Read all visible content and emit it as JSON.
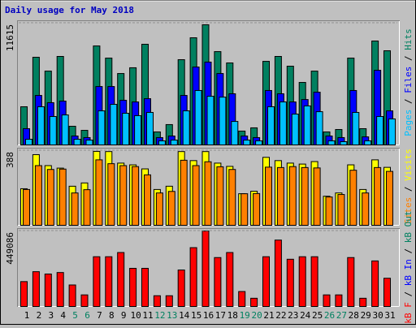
{
  "chart_data": [
    {
      "type": "bar",
      "title": "Daily usage for May 2018",
      "ylim": [
        0,
        11615
      ],
      "yticks": [
        11615
      ],
      "legend_separator": " / ",
      "legend": [
        {
          "name": "Pages",
          "color": "#00c0ff"
        },
        {
          "name": "Files",
          "color": "#0000ff"
        },
        {
          "name": "Hits",
          "color": "#008060"
        }
      ],
      "series": [
        {
          "color": "#008060",
          "values": [
            3640,
            8360,
            7040,
            8440,
            1780,
            1390,
            9440,
            8280,
            6810,
            7360,
            9600,
            1240,
            1940,
            8130,
            10220,
            11460,
            8900,
            7820,
            1320,
            1630,
            7970,
            8440,
            7510,
            5960,
            7040,
            1240,
            1470,
            8280,
            1550,
            9910,
            8980
          ]
        },
        {
          "color": "#0000ff",
          "values": [
            1550,
            4720,
            4030,
            4180,
            850,
            700,
            5570,
            5570,
            4260,
            4100,
            4410,
            700,
            850,
            4720,
            7430,
            7900,
            6810,
            4880,
            850,
            700,
            5190,
            4880,
            4100,
            4330,
            5030,
            850,
            700,
            5190,
            770,
            7120,
            3250
          ]
        },
        {
          "color": "#00c0ff",
          "values": [
            540,
            3640,
            2710,
            2860,
            540,
            460,
            3250,
            3870,
            3020,
            2790,
            3100,
            390,
            460,
            3250,
            5190,
            4640,
            4560,
            2240,
            460,
            390,
            3640,
            4100,
            2940,
            3720,
            3170,
            390,
            310,
            3100,
            390,
            2710,
            2480
          ]
        }
      ]
    },
    {
      "type": "bar",
      "ylim": [
        0,
        388
      ],
      "yticks": [
        388
      ],
      "legend_separator": " / ",
      "legend": [
        {
          "name": "Sites",
          "color": "#ff8000"
        },
        {
          "name": "Visits",
          "color": "#ffff00"
        }
      ],
      "series": [
        {
          "color": "#ffff00",
          "values": [
            190,
            367,
            310,
            297,
            203,
            220,
            384,
            383,
            323,
            314,
            293,
            186,
            203,
            383,
            336,
            383,
            323,
            306,
            164,
            177,
            353,
            336,
            323,
            318,
            331,
            151,
            168,
            314,
            186,
            340,
            301
          ]
        },
        {
          "color": "#ff8000",
          "values": [
            186,
            310,
            290,
            292,
            168,
            185,
            340,
            320,
            310,
            305,
            262,
            168,
            176,
            338,
            310,
            330,
            304,
            290,
            164,
            165,
            302,
            300,
            305,
            300,
            298,
            147,
            160,
            286,
            168,
            300,
            280
          ]
        }
      ]
    },
    {
      "type": "bar",
      "ylim": [
        0,
        449086
      ],
      "yticks": [
        449086
      ],
      "legend_separator": " / ",
      "legend": [
        {
          "name": "kB F",
          "color": "#ff0000"
        },
        {
          "name": "kB In",
          "color": "#0000ff"
        },
        {
          "name": "kB Out",
          "color": "#008060"
        }
      ],
      "series": [
        {
          "color": "#ff0000",
          "values": [
            148000,
            207000,
            193000,
            202000,
            128000,
            69000,
            296000,
            296000,
            321000,
            227000,
            227000,
            64000,
            64000,
            217000,
            350000,
            449000,
            291000,
            321000,
            89000,
            49000,
            296000,
            395000,
            281000,
            296000,
            296000,
            69000,
            69000,
            291000,
            49000,
            271000,
            168000
          ]
        }
      ],
      "categories": [
        "1",
        "2",
        "3",
        "4",
        "5",
        "6",
        "7",
        "8",
        "9",
        "10",
        "11",
        "12",
        "13",
        "14",
        "15",
        "16",
        "17",
        "18",
        "19",
        "20",
        "21",
        "22",
        "23",
        "24",
        "25",
        "26",
        "27",
        "28",
        "29",
        "30",
        "31"
      ],
      "category_colors": [
        "#000000",
        "#000000",
        "#000000",
        "#000000",
        "#008060",
        "#008060",
        "#000000",
        "#000000",
        "#000000",
        "#000000",
        "#000000",
        "#008060",
        "#008060",
        "#000000",
        "#000000",
        "#000000",
        "#000000",
        "#000000",
        "#008060",
        "#008060",
        "#000000",
        "#000000",
        "#000000",
        "#000000",
        "#000000",
        "#008060",
        "#008060",
        "#000000",
        "#000000",
        "#000000",
        "#000000"
      ]
    }
  ]
}
